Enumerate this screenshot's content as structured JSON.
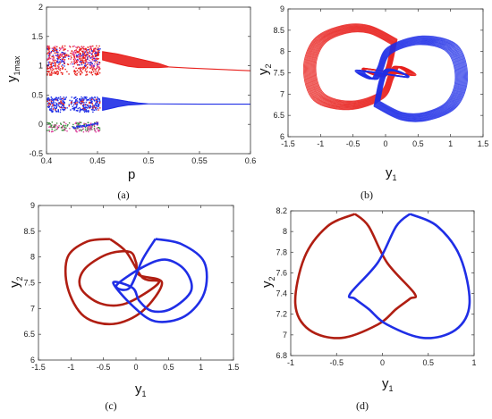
{
  "colors": {
    "red": "#e8201c",
    "dark_red": "#b01e12",
    "blue": "#1f2ee6",
    "magenta": "#e040a0",
    "green": "#3a8a3a"
  },
  "chart_data": [
    {
      "id": "a",
      "type": "scatter",
      "panel_label": "(a)",
      "xlabel": "p",
      "ylabel": "y",
      "ylabel_sub": "1max",
      "xlim": [
        0.4,
        0.6
      ],
      "ylim": [
        -0.5,
        2
      ],
      "xticks": [
        "0.4",
        "0.45",
        "0.5",
        "0.55",
        "0.6"
      ],
      "yticks": [
        "-0.5",
        "0",
        "0.5",
        "1",
        "1.5",
        "2"
      ],
      "series": [
        {
          "color": "red",
          "branches": [
            {
              "x": [
                0.455,
                0.47,
                0.48,
                0.49,
                0.5,
                0.51,
                0.52
              ],
              "upper": [
                1.24,
                1.2,
                1.16,
                1.12,
                1.08,
                1.04,
                0.98
              ],
              "lower": [
                1.1,
                1.03,
                0.99,
                0.97,
                0.97,
                0.97,
                0.98
              ]
            },
            {
              "x": [
                0.52,
                0.54,
                0.56,
                0.58,
                0.6
              ],
              "upper": [
                0.98,
                0.96,
                0.945,
                0.93,
                0.915
              ],
              "lower": [
                0.98,
                0.96,
                0.945,
                0.93,
                0.915
              ]
            }
          ]
        },
        {
          "color": "blue",
          "branches": [
            {
              "x": [
                0.455,
                0.47,
                0.48,
                0.49,
                0.5
              ],
              "upper": [
                0.46,
                0.42,
                0.39,
                0.365,
                0.35
              ],
              "lower": [
                0.24,
                0.3,
                0.33,
                0.34,
                0.35
              ]
            },
            {
              "x": [
                0.5,
                0.55,
                0.6
              ],
              "upper": [
                0.35,
                0.345,
                0.345
              ],
              "lower": [
                0.35,
                0.345,
                0.345
              ]
            }
          ]
        }
      ]
    },
    {
      "id": "b",
      "type": "line",
      "panel_label": "(b)",
      "xlabel": "y",
      "xlabel_sub": "1",
      "ylabel": "y",
      "ylabel_sub": "2",
      "xlim": [
        -1.5,
        1.5
      ],
      "ylim": [
        6,
        9
      ],
      "xticks": [
        "-1.5",
        "-1",
        "-0.5",
        "0",
        "0.5",
        "1",
        "1.5"
      ],
      "yticks": [
        "6",
        "6.5",
        "7",
        "7.5",
        "8",
        "8.5",
        "9"
      ],
      "series": [
        {
          "color": "red",
          "orbit": {
            "x": [
              0.15,
              -0.25,
              -0.65,
              -1.05,
              -1.2,
              -1.05,
              -0.55,
              -0.05,
              0.1,
              0.2,
              0.4,
              -0.35,
              0.0,
              0.15
            ],
            "y": [
              8.25,
              8.55,
              8.55,
              8.25,
              7.6,
              6.9,
              6.7,
              6.95,
              7.4,
              7.65,
              7.45,
              7.6,
              7.45,
              8.25
            ]
          }
        },
        {
          "color": "blue",
          "orbit": {
            "x": [
              -0.15,
              0.25,
              0.65,
              1.05,
              1.2,
              1.05,
              0.55,
              0.05,
              -0.1,
              -0.2,
              -0.4,
              0.35,
              0.0,
              -0.15
            ],
            "y": [
              6.75,
              6.45,
              6.45,
              6.75,
              7.4,
              8.1,
              8.3,
              8.05,
              7.6,
              7.35,
              7.55,
              7.4,
              7.55,
              6.75
            ]
          }
        }
      ]
    },
    {
      "id": "c",
      "type": "line",
      "panel_label": "(c)",
      "xlabel": "y",
      "xlabel_sub": "1",
      "ylabel": "y",
      "ylabel_sub": "2",
      "xlim": [
        -1.5,
        1.5
      ],
      "ylim": [
        6,
        9
      ],
      "xticks": [
        "-1.5",
        "-1",
        "-0.5",
        "0",
        "0.5",
        "1",
        "1.5"
      ],
      "yticks": [
        "6",
        "6.5",
        "7",
        "7.5",
        "8",
        "8.5",
        "9"
      ],
      "series": [
        {
          "color": "dark_red",
          "orbit": {
            "x": [
              -0.4,
              -0.75,
              -1.05,
              -1.05,
              -0.8,
              -0.35,
              0.1,
              0.4,
              0.05,
              0.0,
              -0.1,
              -0.45,
              -0.8,
              -0.85,
              -0.55,
              -0.15,
              0.35,
              0.1,
              -0.15,
              -0.4
            ],
            "y": [
              8.35,
              8.3,
              8.0,
              7.4,
              6.85,
              6.7,
              6.95,
              7.5,
              7.65,
              7.9,
              8.1,
              8.05,
              7.75,
              7.4,
              7.1,
              7.1,
              7.5,
              7.6,
              8.1,
              8.35
            ]
          }
        },
        {
          "color": "blue",
          "orbit": {
            "x": [
              0.3,
              0.7,
              1.05,
              1.05,
              0.75,
              0.3,
              -0.05,
              -0.35,
              -0.05,
              0.05,
              0.25,
              0.55,
              0.85,
              0.75,
              0.45,
              0.1,
              -0.3,
              -0.1,
              0.1,
              0.3
            ],
            "y": [
              8.35,
              8.25,
              7.9,
              7.3,
              6.85,
              6.75,
              7.05,
              7.5,
              7.4,
              7.15,
              6.95,
              7.0,
              7.35,
              7.75,
              7.95,
              7.8,
              7.45,
              7.4,
              7.95,
              8.35
            ]
          }
        }
      ]
    },
    {
      "id": "d",
      "type": "line",
      "panel_label": "(d)",
      "xlabel": "y",
      "xlabel_sub": "1",
      "ylabel": "y",
      "ylabel_sub": "2",
      "xlim": [
        -1,
        1
      ],
      "ylim": [
        6.8,
        8.2
      ],
      "xticks": [
        "-1",
        "-0.5",
        "0",
        "0.5",
        "1"
      ],
      "yticks": [
        "6.8",
        "7",
        "7.2",
        "7.4",
        "7.6",
        "7.8",
        "8",
        "8.2"
      ],
      "series": [
        {
          "color": "dark_red",
          "orbit": {
            "x": [
              -0.3,
              -0.6,
              -0.85,
              -0.95,
              -0.8,
              -0.45,
              -0.05,
              0.15,
              0.3,
              0.35,
              0.05,
              -0.15,
              -0.3
            ],
            "y": [
              8.17,
              8.05,
              7.75,
              7.3,
              7.05,
              6.97,
              7.1,
              7.25,
              7.35,
              7.4,
              7.7,
              8.05,
              8.17
            ]
          }
        },
        {
          "color": "blue",
          "orbit": {
            "x": [
              0.3,
              0.6,
              0.85,
              0.95,
              0.8,
              0.45,
              0.05,
              -0.15,
              -0.3,
              -0.35,
              -0.05,
              0.15,
              0.3
            ],
            "y": [
              8.17,
              8.05,
              7.75,
              7.3,
              7.05,
              6.97,
              7.1,
              7.25,
              7.35,
              7.4,
              7.7,
              8.05,
              8.17
            ]
          }
        }
      ]
    }
  ]
}
